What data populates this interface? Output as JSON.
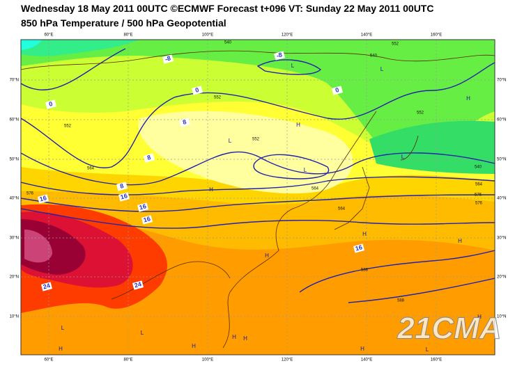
{
  "header": {
    "line1": "Wednesday 18 May 2011 00UTC ©ECMWF Forecast t+096 VT: Sunday 22 May 2011 00UTC",
    "line2": "850 hPa Temperature / 500 hPa Geopotential"
  },
  "map": {
    "lon_labels": [
      "60°E",
      "80°E",
      "100°E",
      "120°E",
      "140°E",
      "160°E"
    ],
    "lat_labels": [
      "70°N",
      "60°N",
      "50°N",
      "40°N",
      "30°N",
      "20°N",
      "10°N"
    ],
    "contour_labels": [
      "540",
      "552",
      "552",
      "564",
      "576",
      "552",
      "564",
      "576",
      "588",
      "588",
      "540",
      "552",
      "564",
      "576",
      "540",
      "552",
      "564"
    ],
    "temperature_labels": [
      "-8",
      "0",
      "8",
      "8",
      "8",
      "16",
      "16",
      "16",
      "16",
      "24",
      "24",
      "0",
      "0",
      "-8",
      "16"
    ],
    "centers": [
      "L",
      "L",
      "L",
      "L",
      "L",
      "H",
      "H",
      "H",
      "H",
      "H",
      "H",
      "H",
      "L",
      "L",
      "H",
      "H",
      "H",
      "H",
      "L",
      "H"
    ],
    "watermark": "21CMA"
  }
}
